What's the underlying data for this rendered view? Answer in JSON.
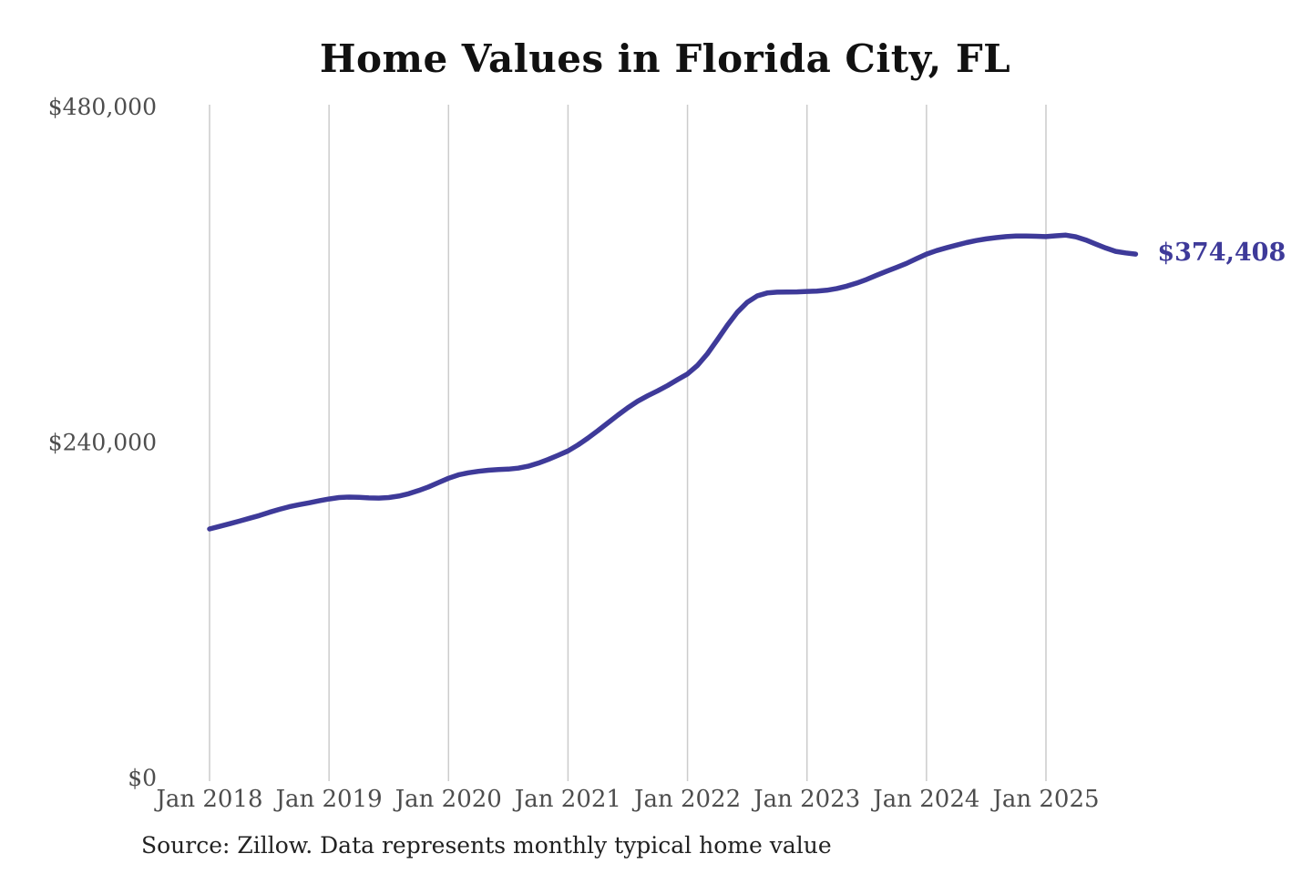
{
  "title": "Home Values in Florida City, FL",
  "source": "Source: Zillow. Data represents monthly typical home value",
  "colors": {
    "line": "#3e3a99",
    "end_label": "#3e3a99",
    "grid": "#cccccc",
    "tick_text": "#4d4d4d",
    "title_text": "#111111",
    "source_text": "#222222",
    "background": "#ffffff"
  },
  "chart_data": {
    "type": "line",
    "title": "Home Values in Florida City, FL",
    "xlabel": "",
    "ylabel": "",
    "x_start": "2018-01",
    "x_end": "2025-10",
    "x_frequency": "monthly",
    "x_tick_labels": [
      "Jan 2018",
      "Jan 2019",
      "Jan 2020",
      "Jan 2021",
      "Jan 2022",
      "Jan 2023",
      "Jan 2024",
      "Jan 2025"
    ],
    "x_tick_month_indices": [
      0,
      12,
      24,
      36,
      48,
      60,
      72,
      84
    ],
    "y_ticks": [
      {
        "value": 0,
        "label": "$0"
      },
      {
        "value": 240000,
        "label": "$240,000"
      },
      {
        "value": 480000,
        "label": "$480,000"
      }
    ],
    "ylim": [
      0,
      480000
    ],
    "grid": "vertical-only",
    "legend": "none",
    "end_label": "$374,408",
    "latest_value": 374408,
    "series": [
      {
        "name": "Typical home value",
        "monthly_values": [
          177800,
          179600,
          181500,
          183400,
          185400,
          187400,
          189700,
          191800,
          193700,
          195200,
          196500,
          197900,
          199200,
          200300,
          200600,
          200400,
          200000,
          199900,
          200300,
          201300,
          203000,
          205300,
          207900,
          211000,
          214100,
          216500,
          218000,
          219000,
          219800,
          220300,
          220600,
          221300,
          222700,
          224800,
          227500,
          230500,
          233600,
          237900,
          242800,
          248100,
          253600,
          259200,
          264500,
          269200,
          273100,
          276600,
          280400,
          284600,
          288700,
          294800,
          303100,
          313200,
          323500,
          332800,
          339900,
          344500,
          346600,
          347200,
          347300,
          347400,
          347700,
          348000,
          348600,
          349800,
          351500,
          353700,
          356300,
          359300,
          362200,
          364900,
          367800,
          371200,
          374400,
          376900,
          378900,
          380800,
          382600,
          384100,
          385300,
          386200,
          386900,
          387300,
          387400,
          387200,
          386900,
          387500,
          388000,
          386800,
          384500,
          381600,
          378800,
          376400,
          375300,
          374408
        ]
      }
    ]
  }
}
